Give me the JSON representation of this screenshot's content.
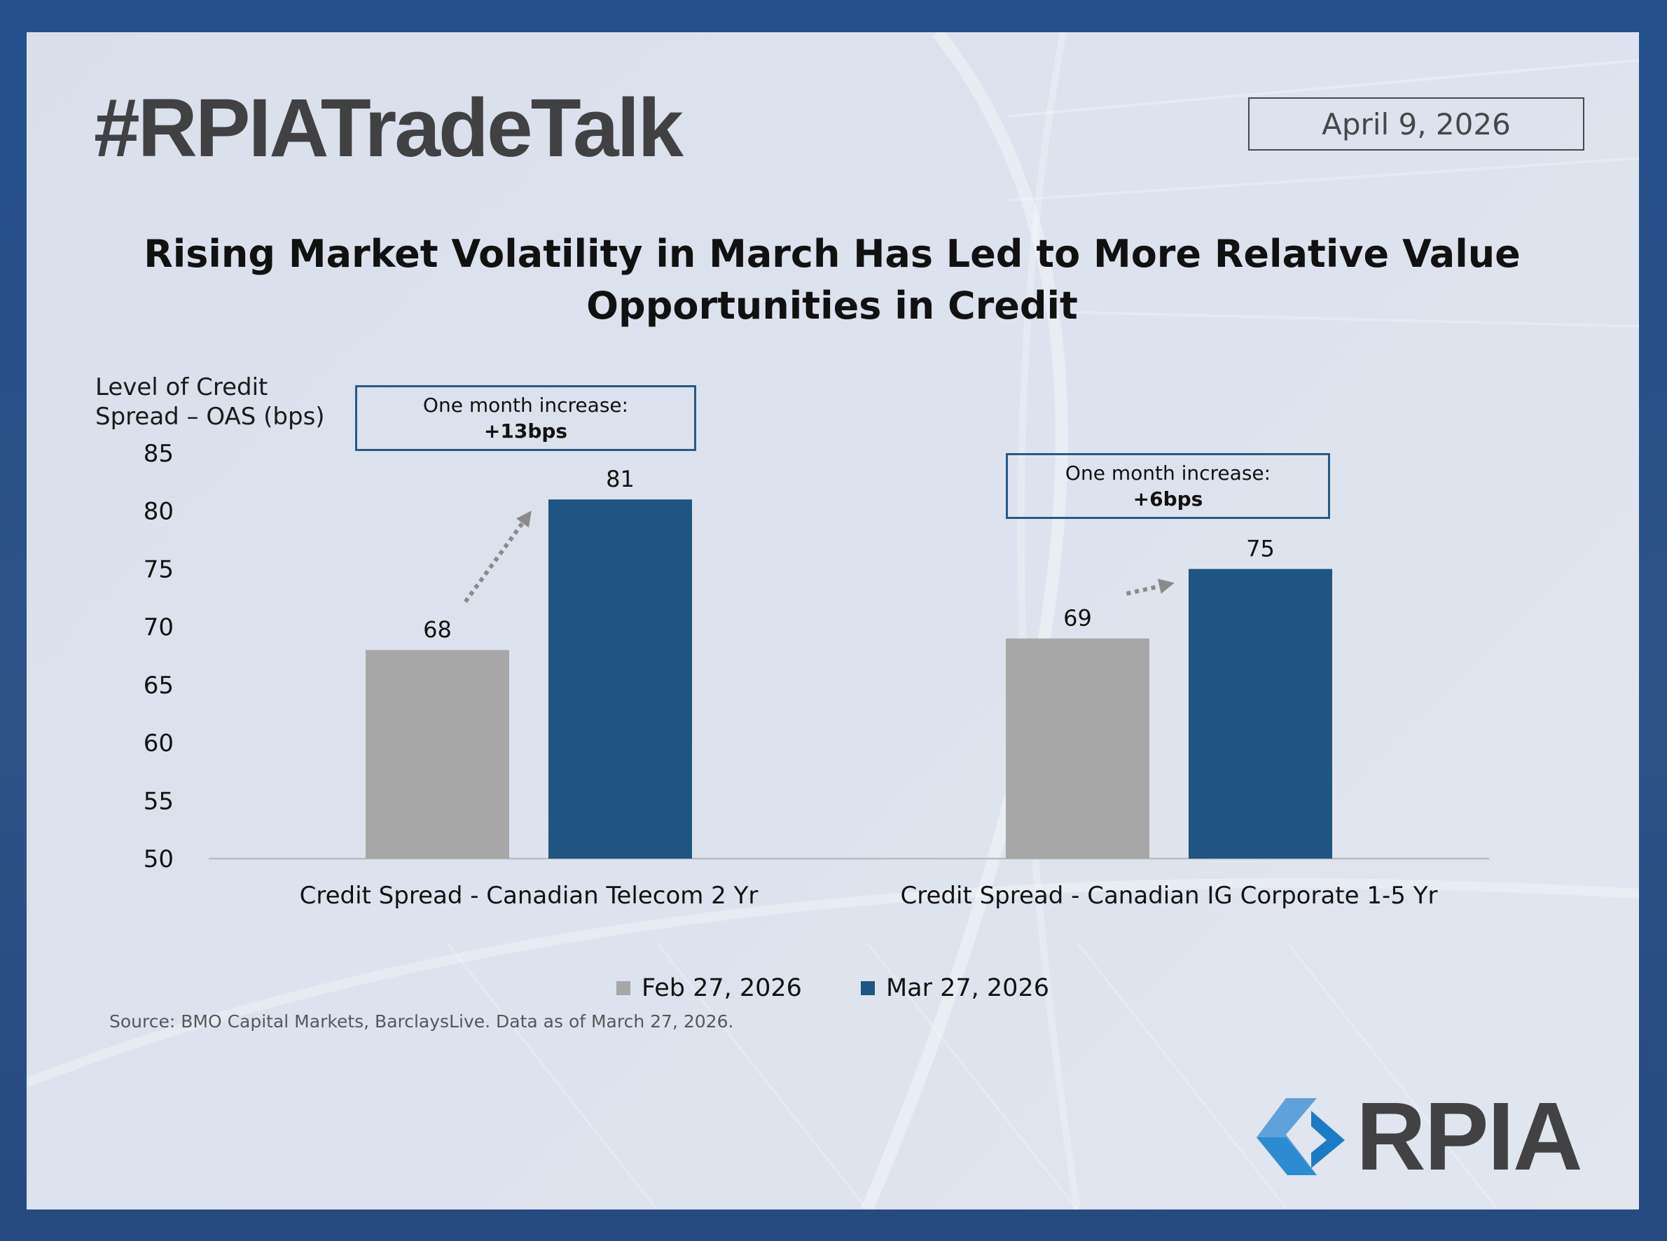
{
  "header": {
    "hashtag": "#RPIATradeTalk",
    "date": "April 9, 2026"
  },
  "colors": {
    "feb_series": "#a7a7a7",
    "mar_series": "#1f5580",
    "annotation_border": "#2a5883",
    "arrow": "#8a8a8a",
    "logo_light": "#5fa1da",
    "logo_dark": "#1b7cc6"
  },
  "annotations": [
    {
      "line1": "One month increase:",
      "line2": "+13bps"
    },
    {
      "line1": "One month increase:",
      "line2": "+6bps"
    }
  ],
  "source": "Source: BMO Capital Markets, BarclaysLive. Data as of March 27, 2026.",
  "logo": {
    "text": "RPIA",
    "icon": "rpia-chevron-logo-icon"
  },
  "chart_data": {
    "type": "bar",
    "title": "Rising Market Volatility in March Has Led to More Relative Value Opportunities in Credit",
    "title_lines": [
      "Rising Market Volatility in March Has Led to More Relative Value",
      "Opportunities in Credit"
    ],
    "ylabel": "Level of Credit Spread – OAS (bps)",
    "ylabel_lines": [
      "Level of Credit",
      "Spread – OAS (bps)"
    ],
    "xlabel": "",
    "ylim": [
      50,
      85
    ],
    "yticks": [
      50,
      55,
      60,
      65,
      70,
      75,
      80,
      85
    ],
    "grid": false,
    "legend_position": "bottom",
    "categories": [
      "Credit Spread - Canadian Telecom 2 Yr",
      "Credit Spread - Canadian IG Corporate 1-5 Yr"
    ],
    "series": [
      {
        "name": "Feb 27, 2026",
        "values": [
          68,
          69
        ],
        "color": "#a7a7a7"
      },
      {
        "name": "Mar 27, 2026",
        "values": [
          81,
          75
        ],
        "color": "#1f5580"
      }
    ],
    "data_labels": [
      [
        "68",
        "69"
      ],
      [
        "81",
        "75"
      ]
    ],
    "annotations": [
      "One month increase: +13bps",
      "One month increase: +6bps"
    ]
  }
}
